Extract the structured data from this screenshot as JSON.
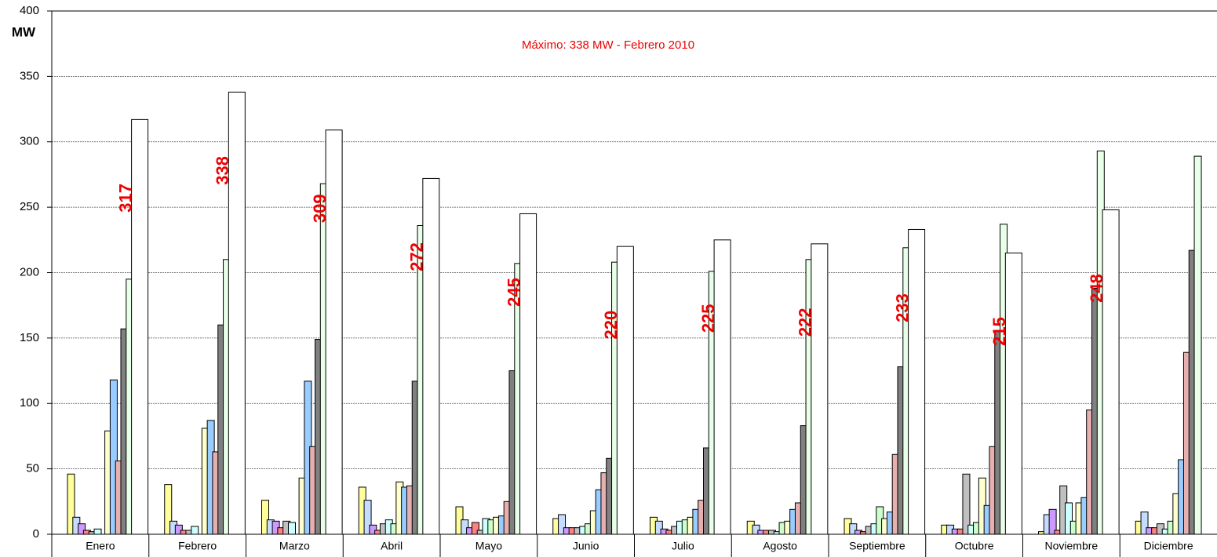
{
  "chart_data": {
    "type": "bar",
    "annotation": "Máximo: 338 MW - Febrero 2010",
    "y_label": "MW",
    "categories": [
      "Enero",
      "Febrero",
      "Marzo",
      "Abril",
      "Mayo",
      "Junio",
      "Julio",
      "Agosto",
      "Septiembre",
      "Octubre",
      "Noviembre",
      "Diciembre"
    ],
    "ylim": [
      0,
      400
    ],
    "yticks": [
      0,
      50,
      100,
      150,
      200,
      250,
      300,
      350,
      400
    ],
    "grid": true,
    "label_color": "#ee0000",
    "series": [
      {
        "color": "#ffff99",
        "values": [
          46,
          38,
          26,
          36,
          21,
          12,
          13,
          10,
          12,
          7,
          2,
          10
        ]
      },
      {
        "color": "#c6dcff",
        "values": [
          13,
          10,
          11,
          26,
          11,
          15,
          10,
          7,
          8,
          7,
          15,
          17
        ]
      },
      {
        "color": "#cc99ff",
        "values": [
          8,
          7,
          10,
          7,
          5,
          5,
          4,
          3,
          3,
          4,
          19,
          5
        ]
      },
      {
        "color": "#ff8080",
        "values": [
          3,
          3,
          5,
          3,
          9,
          5,
          3,
          3,
          2,
          4,
          3,
          5
        ]
      },
      {
        "color": "#c0c0c0",
        "values": [
          2,
          3,
          10,
          8,
          3,
          5,
          6,
          3,
          6,
          46,
          37,
          8
        ]
      },
      {
        "color": "#ccffff",
        "values": [
          4,
          6,
          9,
          11,
          12,
          6,
          10,
          2,
          8,
          7,
          24,
          4
        ]
      },
      {
        "color": "#ccffcc",
        "values": [
          0,
          0,
          0,
          8,
          11,
          8,
          11,
          9,
          21,
          9,
          10,
          10
        ]
      },
      {
        "color": "#ffffcc",
        "values": [
          79,
          81,
          43,
          40,
          13,
          18,
          13,
          10,
          12,
          43,
          24,
          31
        ]
      },
      {
        "color": "#99ccff",
        "values": [
          118,
          87,
          117,
          36,
          14,
          34,
          19,
          19,
          17,
          22,
          28,
          57
        ]
      },
      {
        "color": "#e6b0b0",
        "values": [
          56,
          63,
          67,
          37,
          25,
          47,
          26,
          24,
          61,
          67,
          95,
          139
        ]
      },
      {
        "color": "#808080",
        "values": [
          157,
          160,
          149,
          117,
          125,
          58,
          66,
          83,
          128,
          155,
          188,
          217
        ]
      },
      {
        "color": "#e8ffe8",
        "values": [
          195,
          210,
          268,
          236,
          207,
          208,
          201,
          210,
          219,
          237,
          293,
          289
        ]
      },
      {
        "color": "#ffffff",
        "values": [
          317,
          338,
          309,
          272,
          245,
          220,
          225,
          222,
          233,
          215,
          248,
          null
        ],
        "labels": true
      }
    ]
  }
}
